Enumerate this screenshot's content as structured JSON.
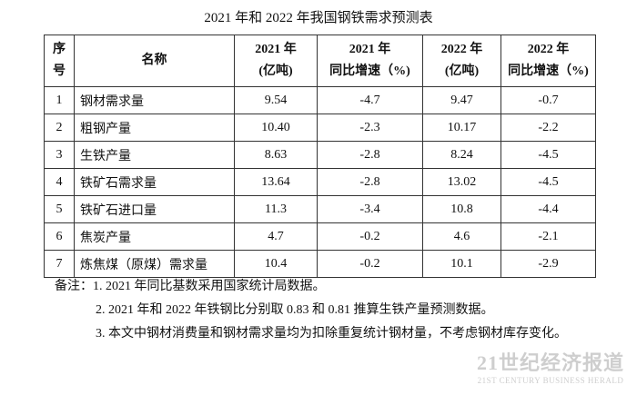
{
  "title": "2021 年和 2022 年我国钢铁需求预测表",
  "table": {
    "header": [
      [
        "序",
        "号"
      ],
      [
        "名称"
      ],
      [
        "2021 年",
        "(亿吨)"
      ],
      [
        "2021 年",
        "同比增速（%)"
      ],
      [
        "2022 年",
        "(亿吨)"
      ],
      [
        "2022 年",
        "同比增速（%)"
      ]
    ],
    "rows": [
      [
        "1",
        "钢材需求量",
        "9.54",
        "-4.7",
        "9.47",
        "-0.7"
      ],
      [
        "2",
        "粗钢产量",
        "10.40",
        "-2.3",
        "10.17",
        "-2.2"
      ],
      [
        "3",
        "生铁产量",
        "8.63",
        "-2.8",
        "8.24",
        "-4.5"
      ],
      [
        "4",
        "铁矿石需求量",
        "13.64",
        "-2.8",
        "13.02",
        "-4.5"
      ],
      [
        "5",
        "铁矿石进口量",
        "11.3",
        "-3.4",
        "10.8",
        "-4.4"
      ],
      [
        "6",
        "焦炭产量",
        "4.7",
        "-0.2",
        "4.6",
        "-2.1"
      ],
      [
        "7",
        "炼焦煤（原煤）需求量",
        "10.4",
        "-0.2",
        "10.1",
        "-2.9"
      ]
    ]
  },
  "notes": {
    "label": "备注：",
    "items": [
      "1. 2021 年同比基数采用国家统计局数据。",
      "2. 2021 年和 2022 年铁钢比分别取 0.83 和 0.81 推算生铁产量预测数据。",
      "3. 本文中钢材消费量和钢材需求量均为扣除重复统计钢材量，不考虑钢材库存变化。"
    ]
  },
  "watermark": {
    "name": "21世纪经济报道",
    "subtitle": "21ST CENTURY BUSINESS HERALD"
  }
}
